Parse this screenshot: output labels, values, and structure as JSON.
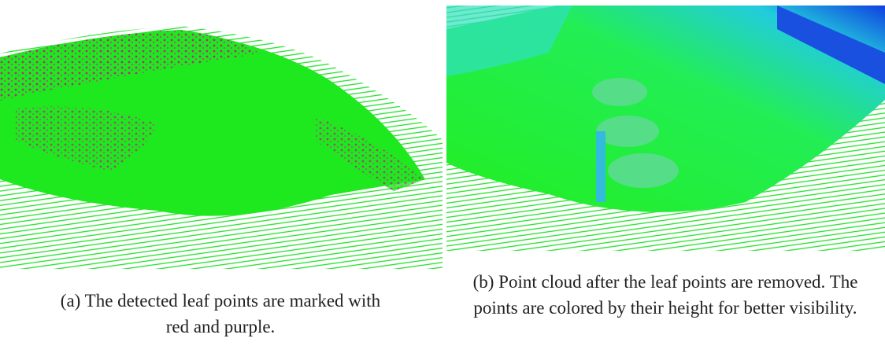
{
  "figures": [
    {
      "label": "(a)",
      "caption": "The detected leaf points are marked with red and purple."
    },
    {
      "label": "(b)",
      "caption": "Point cloud after the leaf points are removed. The points are colored by their height for better visibility."
    }
  ]
}
